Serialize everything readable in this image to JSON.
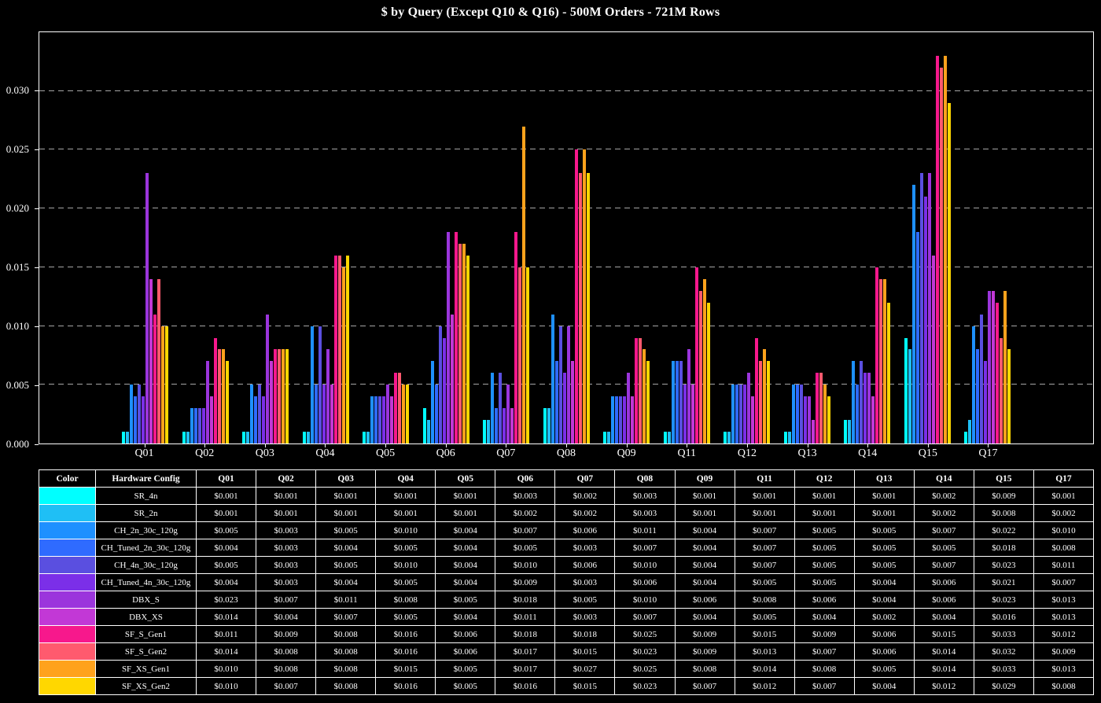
{
  "title": "$ by Query (Except Q10 & Q16) - 500M Orders - 721M Rows",
  "chart_data": {
    "type": "bar",
    "title": "$ by Query (Except Q10 & Q16) - 500M Orders - 721M Rows",
    "categories": [
      "Q01",
      "Q02",
      "Q03",
      "Q04",
      "Q05",
      "Q06",
      "Q07",
      "Q08",
      "Q09",
      "Q11",
      "Q12",
      "Q13",
      "Q14",
      "Q15",
      "Q17"
    ],
    "xlabel": "",
    "ylabel": "",
    "ylim": [
      0,
      0.035
    ],
    "yticks": [
      0,
      0.005,
      0.01,
      0.015,
      0.02,
      0.025,
      0.03
    ],
    "grid": "horizontal-dashed",
    "legend_position": "table-below-chart",
    "series": [
      {
        "name": "SR_4n",
        "color": "#00FFFF",
        "values": [
          0.001,
          0.001,
          0.001,
          0.001,
          0.001,
          0.003,
          0.002,
          0.003,
          0.001,
          0.001,
          0.001,
          0.001,
          0.002,
          0.009,
          0.001
        ]
      },
      {
        "name": "SR_2n",
        "color": "#1FBFF5",
        "values": [
          0.001,
          0.001,
          0.001,
          0.001,
          0.001,
          0.002,
          0.002,
          0.003,
          0.001,
          0.001,
          0.001,
          0.001,
          0.002,
          0.008,
          0.002
        ]
      },
      {
        "name": "CH_2n_30c_120g",
        "color": "#1E90FF",
        "values": [
          0.005,
          0.003,
          0.005,
          0.01,
          0.004,
          0.007,
          0.006,
          0.011,
          0.004,
          0.007,
          0.005,
          0.005,
          0.007,
          0.022,
          0.01
        ]
      },
      {
        "name": "CH_Tuned_2n_30c_120g",
        "color": "#2F6BFF",
        "values": [
          0.004,
          0.003,
          0.004,
          0.005,
          0.004,
          0.005,
          0.003,
          0.007,
          0.004,
          0.007,
          0.005,
          0.005,
          0.005,
          0.018,
          0.008
        ]
      },
      {
        "name": "CH_4n_30c_120g",
        "color": "#5A4FE0",
        "values": [
          0.005,
          0.003,
          0.005,
          0.01,
          0.004,
          0.01,
          0.006,
          0.01,
          0.004,
          0.007,
          0.005,
          0.005,
          0.007,
          0.023,
          0.011
        ]
      },
      {
        "name": "CH_Tuned_4n_30c_120g",
        "color": "#7B2FE8",
        "values": [
          0.004,
          0.003,
          0.004,
          0.005,
          0.004,
          0.009,
          0.003,
          0.006,
          0.004,
          0.005,
          0.005,
          0.004,
          0.006,
          0.021,
          0.007
        ]
      },
      {
        "name": "DBX_S",
        "color": "#9B35DC",
        "values": [
          0.023,
          0.007,
          0.011,
          0.008,
          0.005,
          0.018,
          0.005,
          0.01,
          0.006,
          0.008,
          0.006,
          0.004,
          0.006,
          0.023,
          0.013
        ]
      },
      {
        "name": "DBX_XS",
        "color": "#C238D6",
        "values": [
          0.014,
          0.004,
          0.007,
          0.005,
          0.004,
          0.011,
          0.003,
          0.007,
          0.004,
          0.005,
          0.004,
          0.002,
          0.004,
          0.016,
          0.013
        ]
      },
      {
        "name": "SF_S_Gen1",
        "color": "#F7188C",
        "values": [
          0.011,
          0.009,
          0.008,
          0.016,
          0.006,
          0.018,
          0.018,
          0.025,
          0.009,
          0.015,
          0.009,
          0.006,
          0.015,
          0.033,
          0.012
        ]
      },
      {
        "name": "SF_S_Gen2",
        "color": "#FF5A6E",
        "values": [
          0.014,
          0.008,
          0.008,
          0.016,
          0.006,
          0.017,
          0.015,
          0.023,
          0.009,
          0.013,
          0.007,
          0.006,
          0.014,
          0.032,
          0.009
        ]
      },
      {
        "name": "SF_XS_Gen1",
        "color": "#FFA21C",
        "values": [
          0.01,
          0.008,
          0.008,
          0.015,
          0.005,
          0.017,
          0.027,
          0.025,
          0.008,
          0.014,
          0.008,
          0.005,
          0.014,
          0.033,
          0.013
        ]
      },
      {
        "name": "SF_XS_Gen2",
        "color": "#FFD700",
        "values": [
          0.01,
          0.007,
          0.008,
          0.016,
          0.005,
          0.016,
          0.015,
          0.023,
          0.007,
          0.012,
          0.007,
          0.004,
          0.012,
          0.029,
          0.008
        ]
      }
    ]
  },
  "table": {
    "headers": [
      "Color",
      "Hardware Config",
      "Q01",
      "Q02",
      "Q03",
      "Q04",
      "Q05",
      "Q06",
      "Q07",
      "Q08",
      "Q09",
      "Q11",
      "Q12",
      "Q13",
      "Q14",
      "Q15",
      "Q17"
    ],
    "value_prefix": "$"
  }
}
